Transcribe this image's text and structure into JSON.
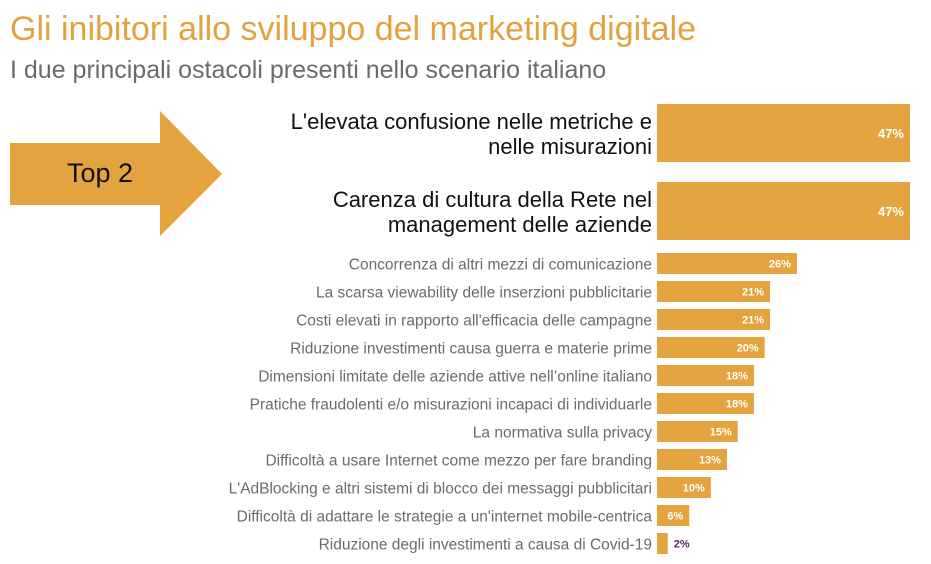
{
  "colors": {
    "title": "#E0A33F",
    "subtitle": "#6b6b6b",
    "bar": "#E3A33F",
    "arrow": "#E3A33F",
    "label_big": "#111111",
    "label_small": "#6b6b6b",
    "value_on_bar": "#ffffff",
    "value_outside": "#5a2a6e"
  },
  "chart_data": {
    "type": "bar",
    "orientation": "horizontal",
    "title": "Gli inibitori allo sviluppo del marketing digitale",
    "subtitle": "I due principali ostacoli presenti nello scenario italiano",
    "callout": "Top 2",
    "value_suffix": "%",
    "xlim": [
      0,
      47
    ],
    "categories": [
      [
        "L'elevata confusione nelle metriche e",
        "nelle misurazioni"
      ],
      [
        "Carenza di cultura della Rete nel",
        "management delle aziende"
      ],
      [
        "Concorrenza di altri mezzi di comunicazione"
      ],
      [
        "La scarsa viewability delle inserzioni pubblicitarie"
      ],
      [
        "Costi elevati in rapporto all'efficacia delle campagne"
      ],
      [
        "Riduzione investimenti causa guerra e materie prime"
      ],
      [
        "Dimensioni limitate delle aziende attive nell’online italiano"
      ],
      [
        "Pratiche fraudolenti e/o misurazioni incapaci di individuarle"
      ],
      [
        "La normativa sulla privacy"
      ],
      [
        "Difficoltà a usare Internet come mezzo per fare branding"
      ],
      [
        "L'AdBlocking e altri sistemi di blocco dei messaggi pubblicitari"
      ],
      [
        "Difficoltà di adattare le strategie a un'internet mobile-centrica"
      ],
      [
        "Riduzione degli investimenti a causa di Covid-19"
      ]
    ],
    "values": [
      47,
      47,
      26,
      21,
      21,
      20,
      18,
      18,
      15,
      13,
      10,
      6,
      2
    ],
    "top_group_size": 2
  }
}
